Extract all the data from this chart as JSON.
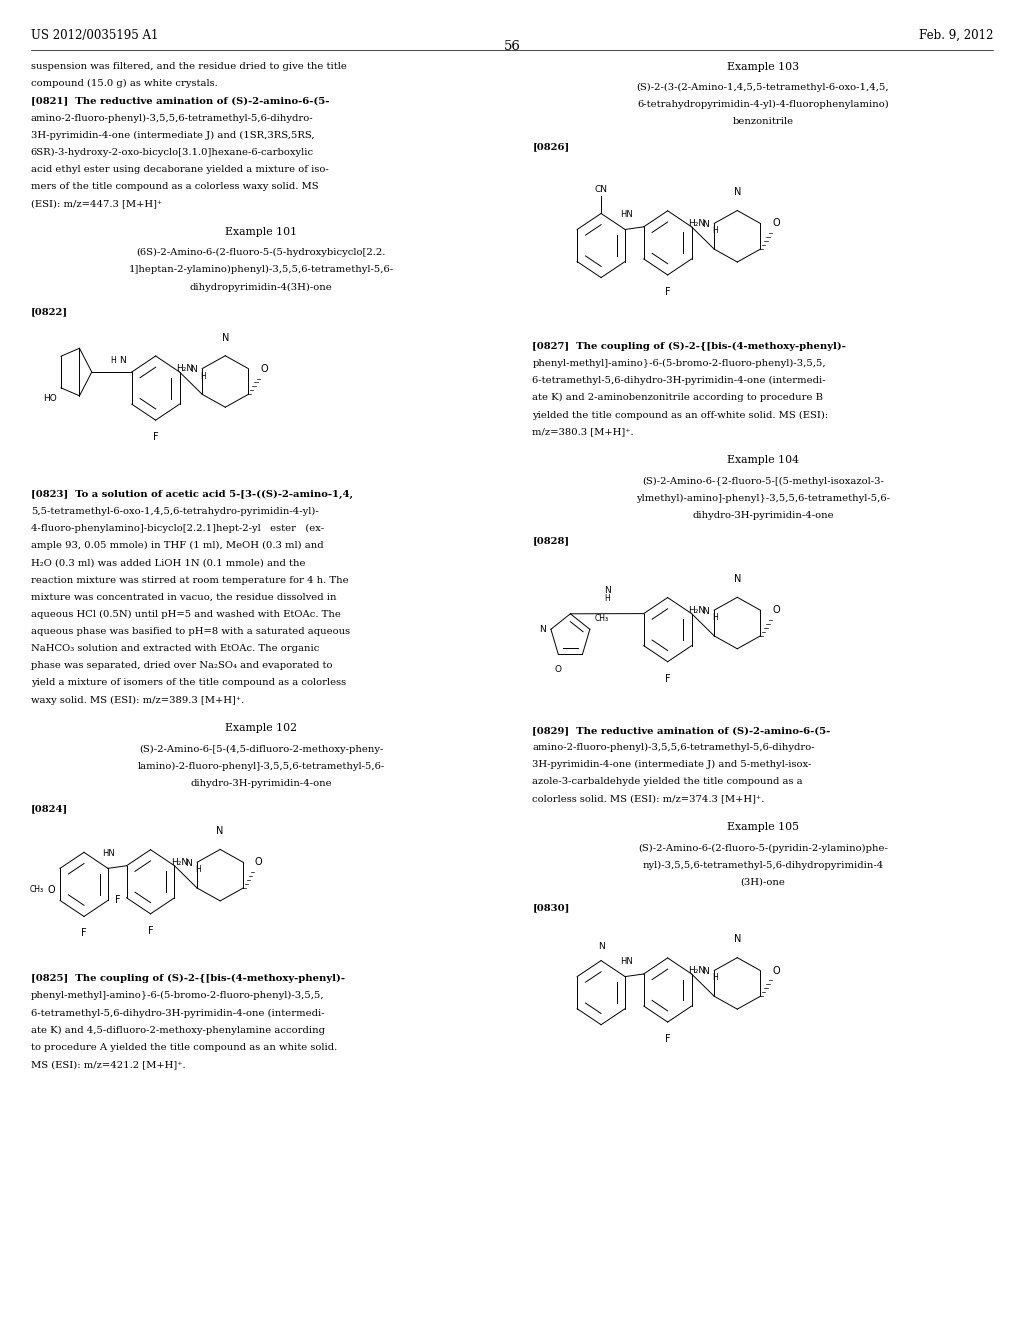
{
  "header_left": "US 2012/0035195 A1",
  "header_right": "Feb. 9, 2012",
  "page_number": "56",
  "background_color": "#ffffff",
  "text_color": "#000000"
}
